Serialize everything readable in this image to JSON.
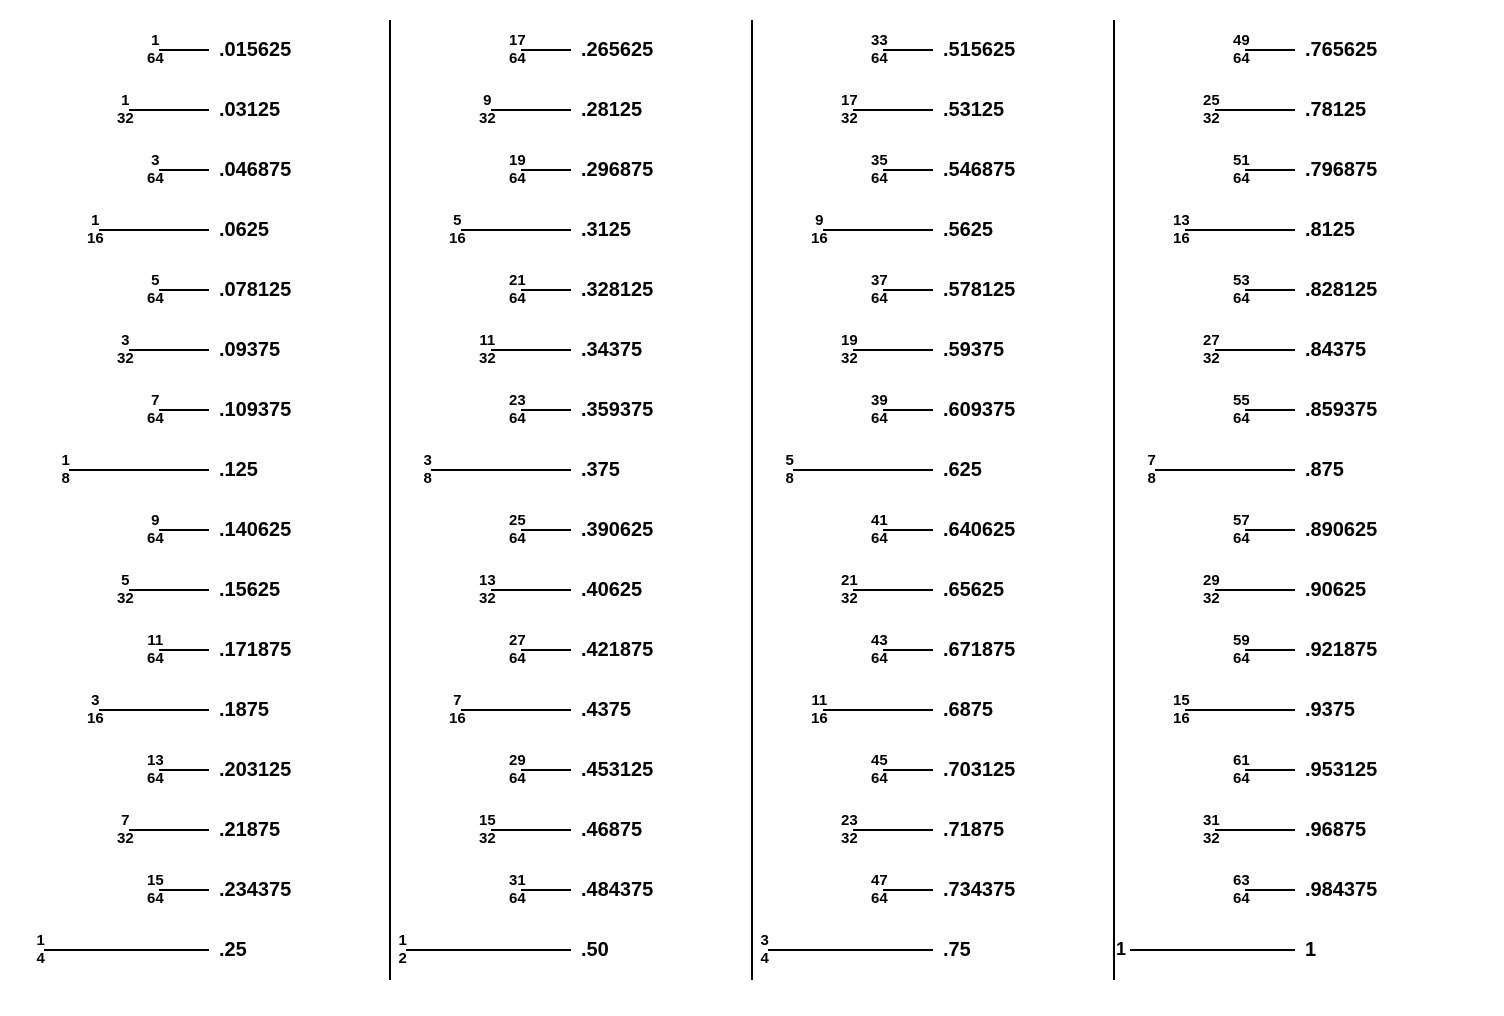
{
  "layout": {
    "columns": 4,
    "rows_per_column": 16,
    "line_base_width": 170,
    "background_color": "#ffffff",
    "line_color": "#000000",
    "text_color": "#000000",
    "font_family": "Arial",
    "fraction_fontsize": 15,
    "decimal_fontsize": 20,
    "line_widths_by_denominator": {
      "64": 50,
      "32": 80,
      "16": 110,
      "8": 140,
      "4": 165,
      "2": 165,
      "whole": 165
    }
  },
  "columns": [
    {
      "entries": [
        {
          "numerator": "1",
          "denominator": "64",
          "decimal": ".015625"
        },
        {
          "numerator": "1",
          "denominator": "32",
          "decimal": ".03125"
        },
        {
          "numerator": "3",
          "denominator": "64",
          "decimal": ".046875"
        },
        {
          "numerator": "1",
          "denominator": "16",
          "decimal": ".0625"
        },
        {
          "numerator": "5",
          "denominator": "64",
          "decimal": ".078125"
        },
        {
          "numerator": "3",
          "denominator": "32",
          "decimal": ".09375"
        },
        {
          "numerator": "7",
          "denominator": "64",
          "decimal": ".109375"
        },
        {
          "numerator": "1",
          "denominator": "8",
          "decimal": ".125"
        },
        {
          "numerator": "9",
          "denominator": "64",
          "decimal": ".140625"
        },
        {
          "numerator": "5",
          "denominator": "32",
          "decimal": ".15625"
        },
        {
          "numerator": "11",
          "denominator": "64",
          "decimal": ".171875"
        },
        {
          "numerator": "3",
          "denominator": "16",
          "decimal": ".1875"
        },
        {
          "numerator": "13",
          "denominator": "64",
          "decimal": ".203125"
        },
        {
          "numerator": "7",
          "denominator": "32",
          "decimal": ".21875"
        },
        {
          "numerator": "15",
          "denominator": "64",
          "decimal": ".234375"
        },
        {
          "numerator": "1",
          "denominator": "4",
          "decimal": ".25"
        }
      ]
    },
    {
      "entries": [
        {
          "numerator": "17",
          "denominator": "64",
          "decimal": ".265625"
        },
        {
          "numerator": "9",
          "denominator": "32",
          "decimal": ".28125"
        },
        {
          "numerator": "19",
          "denominator": "64",
          "decimal": ".296875"
        },
        {
          "numerator": "5",
          "denominator": "16",
          "decimal": ".3125"
        },
        {
          "numerator": "21",
          "denominator": "64",
          "decimal": ".328125"
        },
        {
          "numerator": "11",
          "denominator": "32",
          "decimal": ".34375"
        },
        {
          "numerator": "23",
          "denominator": "64",
          "decimal": ".359375"
        },
        {
          "numerator": "3",
          "denominator": "8",
          "decimal": ".375"
        },
        {
          "numerator": "25",
          "denominator": "64",
          "decimal": ".390625"
        },
        {
          "numerator": "13",
          "denominator": "32",
          "decimal": ".40625"
        },
        {
          "numerator": "27",
          "denominator": "64",
          "decimal": ".421875"
        },
        {
          "numerator": "7",
          "denominator": "16",
          "decimal": ".4375"
        },
        {
          "numerator": "29",
          "denominator": "64",
          "decimal": ".453125"
        },
        {
          "numerator": "15",
          "denominator": "32",
          "decimal": ".46875"
        },
        {
          "numerator": "31",
          "denominator": "64",
          "decimal": ".484375"
        },
        {
          "numerator": "1",
          "denominator": "2",
          "decimal": ".50"
        }
      ]
    },
    {
      "entries": [
        {
          "numerator": "33",
          "denominator": "64",
          "decimal": ".515625"
        },
        {
          "numerator": "17",
          "denominator": "32",
          "decimal": ".53125"
        },
        {
          "numerator": "35",
          "denominator": "64",
          "decimal": ".546875"
        },
        {
          "numerator": "9",
          "denominator": "16",
          "decimal": ".5625"
        },
        {
          "numerator": "37",
          "denominator": "64",
          "decimal": ".578125"
        },
        {
          "numerator": "19",
          "denominator": "32",
          "decimal": ".59375"
        },
        {
          "numerator": "39",
          "denominator": "64",
          "decimal": ".609375"
        },
        {
          "numerator": "5",
          "denominator": "8",
          "decimal": ".625"
        },
        {
          "numerator": "41",
          "denominator": "64",
          "decimal": ".640625"
        },
        {
          "numerator": "21",
          "denominator": "32",
          "decimal": ".65625"
        },
        {
          "numerator": "43",
          "denominator": "64",
          "decimal": ".671875"
        },
        {
          "numerator": "11",
          "denominator": "16",
          "decimal": ".6875"
        },
        {
          "numerator": "45",
          "denominator": "64",
          "decimal": ".703125"
        },
        {
          "numerator": "23",
          "denominator": "32",
          "decimal": ".71875"
        },
        {
          "numerator": "47",
          "denominator": "64",
          "decimal": ".734375"
        },
        {
          "numerator": "3",
          "denominator": "4",
          "decimal": ".75"
        }
      ]
    },
    {
      "entries": [
        {
          "numerator": "49",
          "denominator": "64",
          "decimal": ".765625"
        },
        {
          "numerator": "25",
          "denominator": "32",
          "decimal": ".78125"
        },
        {
          "numerator": "51",
          "denominator": "64",
          "decimal": ".796875"
        },
        {
          "numerator": "13",
          "denominator": "16",
          "decimal": ".8125"
        },
        {
          "numerator": "53",
          "denominator": "64",
          "decimal": ".828125"
        },
        {
          "numerator": "27",
          "denominator": "32",
          "decimal": ".84375"
        },
        {
          "numerator": "55",
          "denominator": "64",
          "decimal": ".859375"
        },
        {
          "numerator": "7",
          "denominator": "8",
          "decimal": ".875"
        },
        {
          "numerator": "57",
          "denominator": "64",
          "decimal": ".890625"
        },
        {
          "numerator": "29",
          "denominator": "32",
          "decimal": ".90625"
        },
        {
          "numerator": "59",
          "denominator": "64",
          "decimal": ".921875"
        },
        {
          "numerator": "15",
          "denominator": "16",
          "decimal": ".9375"
        },
        {
          "numerator": "61",
          "denominator": "64",
          "decimal": ".953125"
        },
        {
          "numerator": "31",
          "denominator": "32",
          "decimal": ".96875"
        },
        {
          "numerator": "63",
          "denominator": "64",
          "decimal": ".984375"
        },
        {
          "whole": "1",
          "decimal": "1"
        }
      ]
    }
  ]
}
